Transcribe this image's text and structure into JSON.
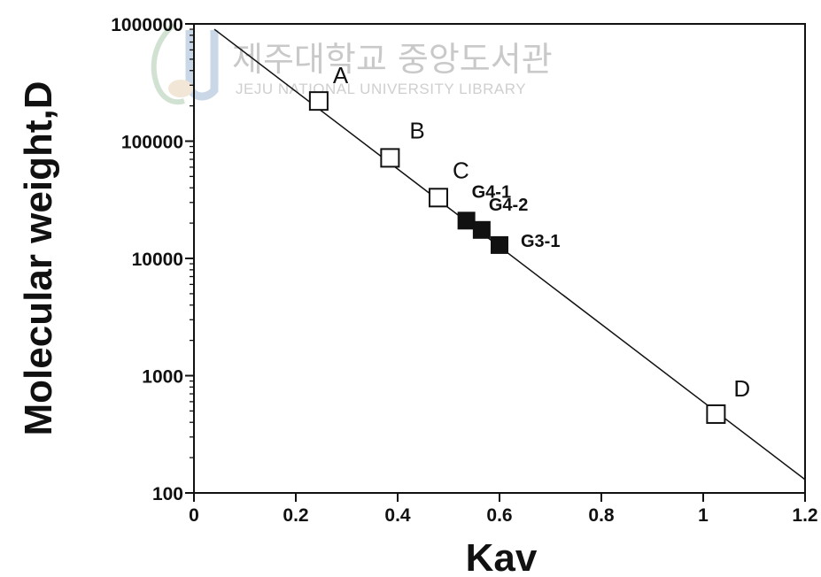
{
  "watermark": {
    "title": "제주대학교 중앙도서관",
    "subtitle": "JEJU NATIONAL UNIVERSITY LIBRARY"
  },
  "chart_data": {
    "type": "scatter",
    "title": "",
    "xlabel": "Kav",
    "ylabel": "Molecular weight,D",
    "xlim": [
      0,
      1.2
    ],
    "ylim": [
      100,
      1000000
    ],
    "y_scale": "log",
    "grid": false,
    "x_ticks": [
      0,
      0.2,
      0.4,
      0.6,
      0.8,
      1,
      1.2
    ],
    "x_tick_labels": [
      "0",
      "0.2",
      "0.4",
      "0.6",
      "0.8",
      "1",
      "1.2"
    ],
    "y_ticks": [
      100,
      1000,
      10000,
      100000,
      1000000
    ],
    "y_tick_labels": [
      "100",
      "1000",
      "10000",
      "100000",
      "1000000"
    ],
    "series": [
      {
        "marker": "open-square",
        "points": [
          {
            "label": "A",
            "x": 0.245,
            "y": 220000
          },
          {
            "label": "B",
            "x": 0.385,
            "y": 72000
          },
          {
            "label": "C",
            "x": 0.48,
            "y": 33000
          },
          {
            "label": "D",
            "x": 1.025,
            "y": 470
          }
        ]
      },
      {
        "marker": "filled-square",
        "points": [
          {
            "label": "G4-1",
            "x": 0.535,
            "y": 21000
          },
          {
            "label": "G4-2",
            "x": 0.565,
            "y": 17500
          },
          {
            "label": "G3-1",
            "x": 0.6,
            "y": 13000
          }
        ]
      }
    ],
    "fit_line": {
      "x": [
        0.04,
        1.2
      ],
      "y": [
        900000,
        130
      ]
    }
  }
}
